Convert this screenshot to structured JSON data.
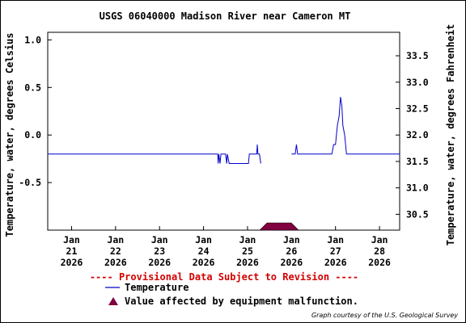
{
  "chart_data": {
    "type": "line",
    "title": "USGS 06040000 Madison River near Cameron MT",
    "ylabel_left": "Temperature, water, degrees Celsius",
    "ylabel_right": "Temperature, water, degrees Fahrenheit",
    "ylim_left": [
      -1.0,
      1.08
    ],
    "ylim_right": [
      30.2,
      33.944
    ],
    "yticks_left": [
      1.0,
      0.5,
      0.0,
      -0.5
    ],
    "yticks_left_labels": [
      "1.0",
      "0.5",
      "0.0",
      "-0.5"
    ],
    "yticks_right": [
      33.5,
      33.0,
      32.5,
      32.0,
      31.5,
      31.0,
      30.5
    ],
    "yticks_right_labels": [
      "33.5",
      "33.0",
      "32.5",
      "32.0",
      "31.5",
      "31.0",
      "30.5"
    ],
    "xlim": [
      "2026-01-20T11:00",
      "2026-01-28T11:00"
    ],
    "xticks": [
      {
        "date": "2026-01-21",
        "month": "Jan",
        "day": "21",
        "year": "2026"
      },
      {
        "date": "2026-01-22",
        "month": "Jan",
        "day": "22",
        "year": "2026"
      },
      {
        "date": "2026-01-23",
        "month": "Jan",
        "day": "23",
        "year": "2026"
      },
      {
        "date": "2026-01-24",
        "month": "Jan",
        "day": "24",
        "year": "2026"
      },
      {
        "date": "2026-01-25",
        "month": "Jan",
        "day": "25",
        "year": "2026"
      },
      {
        "date": "2026-01-26",
        "month": "Jan",
        "day": "26",
        "year": "2026"
      },
      {
        "date": "2026-01-27",
        "month": "Jan",
        "day": "27",
        "year": "2026"
      },
      {
        "date": "2026-01-28",
        "month": "Jan",
        "day": "28",
        "year": "2026"
      }
    ],
    "grid": false,
    "series": [
      {
        "name": "Temperature",
        "color": "#0000cc",
        "segments": [
          [
            [
              "2026-01-20T11:00",
              -0.2
            ],
            [
              "2026-01-24T07:45",
              -0.2
            ],
            [
              "2026-01-24T08:00",
              -0.3
            ],
            [
              "2026-01-24T08:20",
              -0.2
            ],
            [
              "2026-01-24T09:00",
              -0.3
            ],
            [
              "2026-01-24T09:30",
              -0.2
            ],
            [
              "2026-01-24T12:00",
              -0.2
            ],
            [
              "2026-01-24T12:40",
              -0.3
            ],
            [
              "2026-01-24T13:00",
              -0.2
            ],
            [
              "2026-01-24T14:00",
              -0.3
            ],
            [
              "2026-01-25T00:30",
              -0.3
            ],
            [
              "2026-01-25T01:00",
              -0.2
            ],
            [
              "2026-01-25T05:00",
              -0.2
            ],
            [
              "2026-01-25T05:20",
              -0.1
            ],
            [
              "2026-01-25T05:40",
              -0.2
            ],
            [
              "2026-01-25T06:30",
              -0.2
            ],
            [
              "2026-01-25T07:15",
              -0.3
            ]
          ],
          [
            [
              "2026-01-26T00:00",
              -0.2
            ],
            [
              "2026-01-26T02:00",
              -0.2
            ],
            [
              "2026-01-26T02:40",
              -0.1
            ],
            [
              "2026-01-26T03:20",
              -0.2
            ],
            [
              "2026-01-26T22:00",
              -0.2
            ],
            [
              "2026-01-26T23:00",
              -0.1
            ],
            [
              "2026-01-27T00:00",
              -0.1
            ],
            [
              "2026-01-27T01:00",
              0.1
            ],
            [
              "2026-01-27T02:00",
              0.2
            ],
            [
              "2026-01-27T02:45",
              0.4
            ],
            [
              "2026-01-27T03:30",
              0.3
            ],
            [
              "2026-01-27T04:00",
              0.1
            ],
            [
              "2026-01-27T05:00",
              0.0
            ],
            [
              "2026-01-27T06:00",
              -0.2
            ],
            [
              "2026-01-28T11:00",
              -0.2
            ]
          ]
        ]
      }
    ],
    "annotations": [
      {
        "type": "equipment-malfunction",
        "start": "2026-01-25T08:00",
        "end": "2026-01-26T02:30",
        "color": "#800040"
      }
    ],
    "provisional_text": "---- Provisional Data Subject to Revision ----",
    "legend": [
      {
        "label": "Temperature",
        "marker": "line",
        "color": "#0000cc"
      },
      {
        "label": "Value affected by equipment malfunction.",
        "marker": "triangle",
        "color": "#800040"
      }
    ],
    "legend_placement": "bottom",
    "credit": "Graph courtesy of the U.S. Geological Survey"
  }
}
